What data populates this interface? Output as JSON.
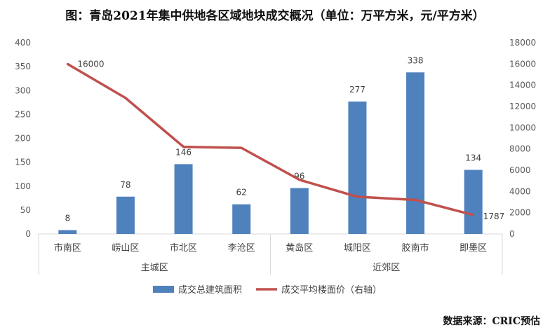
{
  "chart_data": {
    "type": "bar+line",
    "title": "图：青岛2021年集中供地各区域地块成交概况（单位：万平方米，元/平方米）",
    "categories": [
      "市南区",
      "崂山区",
      "市北区",
      "李沧区",
      "黄岛区",
      "城阳区",
      "胶南市",
      "即墨区"
    ],
    "groups": [
      {
        "name": "主城区",
        "count": 4
      },
      {
        "name": "近郊区",
        "count": 4
      }
    ],
    "series": [
      {
        "name": "成交总建筑面积",
        "type": "bar",
        "axis": "left",
        "color": "#4F81BD",
        "values": [
          8,
          78,
          146,
          62,
          96,
          277,
          338,
          134
        ],
        "labels": [
          "8",
          "78",
          "146",
          "62",
          "96",
          "277",
          "338",
          "134"
        ]
      },
      {
        "name": "成交平均楼面价（右轴）",
        "type": "line",
        "axis": "right",
        "color": "#C0504D",
        "values": [
          16000,
          12800,
          8200,
          8100,
          5100,
          3500,
          3200,
          1787
        ],
        "labels": [
          "16000",
          "",
          "",
          "",
          "",
          "",
          "",
          "1787"
        ]
      }
    ],
    "y_left": {
      "lim": [
        0,
        400
      ],
      "ticks": [
        "0",
        "50",
        "100",
        "150",
        "200",
        "250",
        "300",
        "350",
        "400"
      ]
    },
    "y_right": {
      "lim": [
        0,
        18000
      ],
      "ticks": [
        "0",
        "2000",
        "4000",
        "6000",
        "8000",
        "10000",
        "12000",
        "14000",
        "16000",
        "18000"
      ]
    },
    "legend_position": "bottom",
    "grid": false
  },
  "source": "数据来源：CRIC预估"
}
